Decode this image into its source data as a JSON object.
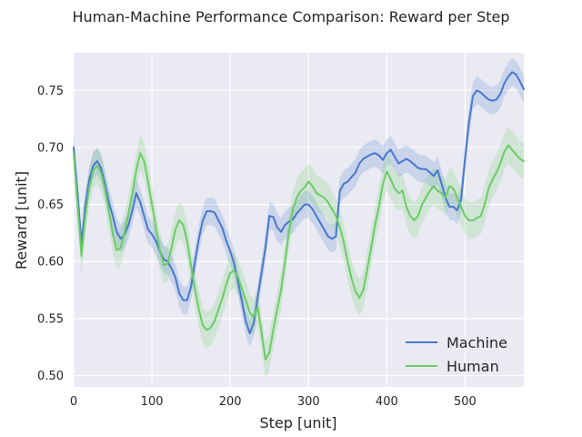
{
  "chart_data": {
    "type": "line",
    "title": "Human-Machine Performance Comparison: Reward per Step",
    "xlabel": "Step [unit]",
    "ylabel": "Reward [unit]",
    "xlim": [
      0,
      575
    ],
    "ylim": [
      0.49,
      0.783
    ],
    "xticks": [
      0,
      100,
      200,
      300,
      400,
      500
    ],
    "yticks": [
      0.5,
      0.55,
      0.6,
      0.65,
      0.7,
      0.75
    ],
    "ytick_labels": [
      "0.50",
      "0.55",
      "0.60",
      "0.65",
      "0.70",
      "0.75"
    ],
    "grid": true,
    "legend_position": "bottom-right",
    "background_color": "#eaeaf2",
    "series": [
      {
        "name": "Machine",
        "color": "#4878cf",
        "band_halfwidth": 0.012,
        "x": [
          0,
          5,
          10,
          15,
          20,
          25,
          30,
          35,
          40,
          45,
          50,
          55,
          60,
          65,
          70,
          75,
          80,
          85,
          90,
          95,
          100,
          105,
          110,
          115,
          120,
          125,
          130,
          135,
          140,
          145,
          150,
          155,
          160,
          165,
          170,
          175,
          180,
          185,
          190,
          195,
          200,
          205,
          210,
          215,
          220,
          225,
          230,
          235,
          240,
          245,
          250,
          255,
          260,
          265,
          270,
          275,
          280,
          285,
          290,
          295,
          300,
          305,
          310,
          315,
          320,
          325,
          330,
          335,
          340,
          345,
          350,
          355,
          360,
          365,
          370,
          375,
          380,
          385,
          390,
          395,
          400,
          405,
          410,
          415,
          420,
          425,
          430,
          435,
          440,
          445,
          450,
          455,
          460,
          465,
          470,
          475,
          480,
          485,
          490,
          495,
          500,
          505,
          510,
          515,
          520,
          525,
          530,
          535,
          540,
          545,
          550,
          555,
          560,
          565,
          570,
          575
        ],
        "values": [
          0.7,
          0.66,
          0.615,
          0.65,
          0.672,
          0.684,
          0.688,
          0.682,
          0.668,
          0.652,
          0.64,
          0.626,
          0.62,
          0.624,
          0.632,
          0.645,
          0.66,
          0.652,
          0.64,
          0.628,
          0.624,
          0.618,
          0.609,
          0.602,
          0.6,
          0.594,
          0.586,
          0.572,
          0.566,
          0.566,
          0.578,
          0.6,
          0.62,
          0.636,
          0.644,
          0.644,
          0.643,
          0.636,
          0.629,
          0.618,
          0.609,
          0.598,
          0.582,
          0.565,
          0.547,
          0.537,
          0.546,
          0.568,
          0.59,
          0.612,
          0.64,
          0.639,
          0.63,
          0.626,
          0.632,
          0.635,
          0.637,
          0.642,
          0.646,
          0.65,
          0.65,
          0.646,
          0.64,
          0.634,
          0.628,
          0.622,
          0.62,
          0.622,
          0.662,
          0.668,
          0.67,
          0.674,
          0.678,
          0.686,
          0.69,
          0.692,
          0.694,
          0.695,
          0.693,
          0.689,
          0.695,
          0.698,
          0.692,
          0.686,
          0.688,
          0.69,
          0.688,
          0.685,
          0.682,
          0.681,
          0.681,
          0.678,
          0.675,
          0.68,
          0.668,
          0.656,
          0.648,
          0.648,
          0.645,
          0.655,
          0.69,
          0.722,
          0.745,
          0.75,
          0.748,
          0.745,
          0.742,
          0.741,
          0.742,
          0.747,
          0.756,
          0.762,
          0.766,
          0.764,
          0.758,
          0.751
        ]
      },
      {
        "name": "Human",
        "color": "#6acc65",
        "band_halfwidth": 0.016,
        "x": [
          0,
          5,
          10,
          15,
          20,
          25,
          30,
          35,
          40,
          45,
          50,
          55,
          60,
          65,
          70,
          75,
          80,
          85,
          90,
          95,
          100,
          105,
          110,
          115,
          120,
          125,
          130,
          135,
          140,
          145,
          150,
          155,
          160,
          165,
          170,
          175,
          180,
          185,
          190,
          195,
          200,
          205,
          210,
          215,
          220,
          225,
          230,
          235,
          240,
          245,
          250,
          255,
          260,
          265,
          270,
          275,
          280,
          285,
          290,
          295,
          300,
          305,
          310,
          315,
          320,
          325,
          330,
          335,
          340,
          345,
          350,
          355,
          360,
          365,
          370,
          375,
          380,
          385,
          390,
          395,
          400,
          405,
          410,
          415,
          420,
          425,
          430,
          435,
          440,
          445,
          450,
          455,
          460,
          465,
          470,
          475,
          480,
          485,
          490,
          495,
          500,
          505,
          510,
          515,
          520,
          525,
          530,
          535,
          540,
          545,
          550,
          555,
          560,
          565,
          570,
          575
        ],
        "values": [
          0.695,
          0.65,
          0.605,
          0.64,
          0.665,
          0.68,
          0.684,
          0.678,
          0.664,
          0.644,
          0.624,
          0.61,
          0.612,
          0.626,
          0.642,
          0.66,
          0.68,
          0.695,
          0.688,
          0.67,
          0.65,
          0.63,
          0.61,
          0.597,
          0.598,
          0.612,
          0.628,
          0.636,
          0.632,
          0.618,
          0.596,
          0.576,
          0.558,
          0.544,
          0.54,
          0.542,
          0.548,
          0.558,
          0.568,
          0.58,
          0.59,
          0.592,
          0.586,
          0.576,
          0.566,
          0.555,
          0.551,
          0.56,
          0.538,
          0.514,
          0.52,
          0.54,
          0.558,
          0.575,
          0.6,
          0.626,
          0.646,
          0.656,
          0.662,
          0.665,
          0.67,
          0.666,
          0.66,
          0.658,
          0.656,
          0.652,
          0.646,
          0.64,
          0.63,
          0.617,
          0.6,
          0.585,
          0.574,
          0.568,
          0.575,
          0.593,
          0.612,
          0.632,
          0.648,
          0.668,
          0.679,
          0.672,
          0.664,
          0.66,
          0.662,
          0.648,
          0.64,
          0.636,
          0.64,
          0.65,
          0.656,
          0.662,
          0.666,
          0.662,
          0.66,
          0.656,
          0.666,
          0.664,
          0.656,
          0.648,
          0.64,
          0.636,
          0.636,
          0.638,
          0.64,
          0.65,
          0.664,
          0.672,
          0.678,
          0.686,
          0.696,
          0.702,
          0.698,
          0.694,
          0.69,
          0.688
        ]
      }
    ]
  }
}
